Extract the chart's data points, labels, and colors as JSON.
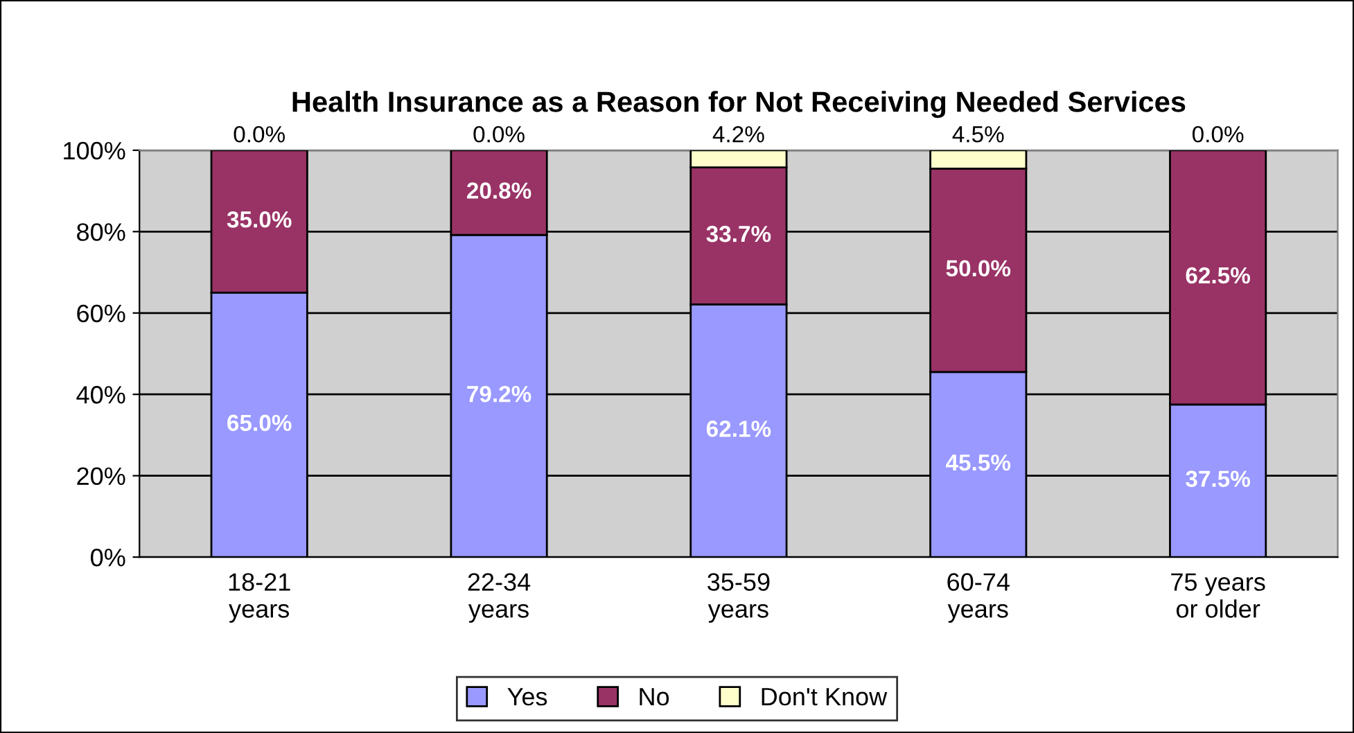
{
  "chart_data": {
    "type": "bar",
    "title": "Health Insurance as a Reason for Not Receiving Needed Services",
    "stacked": true,
    "categories": [
      "18-21\nyears",
      "22-34\nyears",
      "35-59\nyears",
      "60-74\nyears",
      "75 years\nor older"
    ],
    "series": [
      {
        "name": "Yes",
        "color": "#9999ff",
        "values": [
          65.0,
          79.2,
          62.1,
          45.5,
          37.5
        ],
        "value_labels": [
          "65.0%",
          "79.2%",
          "62.1%",
          "45.5%",
          "37.5%"
        ]
      },
      {
        "name": "No",
        "color": "#993366",
        "values": [
          35.0,
          20.8,
          33.7,
          50.0,
          62.5
        ],
        "value_labels": [
          "35.0%",
          "20.8%",
          "33.7%",
          "50.0%",
          "62.5%"
        ]
      },
      {
        "name": "Don't Know",
        "color": "#ffffcc",
        "values": [
          0.0,
          0.0,
          4.2,
          4.5,
          0.0
        ],
        "value_labels": [
          "0.0%",
          "0.0%",
          "4.2%",
          "4.5%",
          "0.0%"
        ]
      }
    ],
    "ylim": [
      0,
      100
    ],
    "yticks": [
      {
        "value": 0,
        "label": "0%"
      },
      {
        "value": 20,
        "label": "20%"
      },
      {
        "value": 40,
        "label": "40%"
      },
      {
        "value": 60,
        "label": "60%"
      },
      {
        "value": 80,
        "label": "80%"
      },
      {
        "value": 100,
        "label": "100%"
      }
    ],
    "grid": "y",
    "legend": "bottom"
  }
}
